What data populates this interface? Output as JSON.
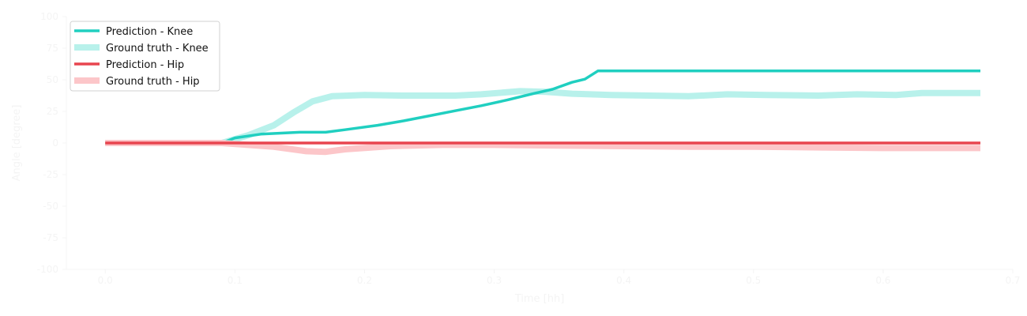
{
  "chart_data": {
    "type": "line",
    "xlabel": "Time [hh]",
    "ylabel": "Angle [degree]",
    "xlim": [
      -0.03,
      0.7
    ],
    "ylim": [
      -100,
      100
    ],
    "grid": false,
    "legend_position": "top-left",
    "x_ticks": [
      "0.0",
      "0.1",
      "0.2",
      "0.3",
      "0.4",
      "0.5",
      "0.6",
      "0.7"
    ],
    "y_ticks": [
      "100",
      "75",
      "50",
      "25",
      "0",
      "-25",
      "-50",
      "-75",
      "-100"
    ],
    "colors": {
      "knee": "#20cfc0",
      "knee_truth": "#b8f1eb",
      "hip": "#e8454f",
      "hip_truth": "#fcc6c9",
      "axis": "#f4f4f4"
    },
    "series": [
      {
        "name": "Ground truth - Knee",
        "style": "truth",
        "color_key": "knee_truth",
        "points": [
          [
            0.0,
            0
          ],
          [
            0.05,
            0
          ],
          [
            0.09,
            0
          ],
          [
            0.11,
            6
          ],
          [
            0.13,
            14
          ],
          [
            0.145,
            24
          ],
          [
            0.16,
            33
          ],
          [
            0.175,
            37
          ],
          [
            0.2,
            38
          ],
          [
            0.23,
            37.5
          ],
          [
            0.27,
            37.5
          ],
          [
            0.29,
            38.5
          ],
          [
            0.32,
            41
          ],
          [
            0.34,
            40.5
          ],
          [
            0.36,
            39
          ],
          [
            0.39,
            38
          ],
          [
            0.42,
            37.5
          ],
          [
            0.45,
            37
          ],
          [
            0.48,
            38.5
          ],
          [
            0.51,
            38
          ],
          [
            0.55,
            37.5
          ],
          [
            0.58,
            38.5
          ],
          [
            0.61,
            38
          ],
          [
            0.63,
            39.5
          ],
          [
            0.675,
            39.5
          ]
        ]
      },
      {
        "name": "Prediction - Knee",
        "style": "prediction",
        "color_key": "knee",
        "points": [
          [
            0.0,
            0
          ],
          [
            0.05,
            0
          ],
          [
            0.09,
            0
          ],
          [
            0.1,
            4
          ],
          [
            0.12,
            7
          ],
          [
            0.15,
            8.5
          ],
          [
            0.17,
            8.5
          ],
          [
            0.185,
            10.5
          ],
          [
            0.21,
            14
          ],
          [
            0.23,
            17.5
          ],
          [
            0.25,
            21.5
          ],
          [
            0.27,
            25.5
          ],
          [
            0.29,
            29.5
          ],
          [
            0.31,
            34
          ],
          [
            0.33,
            39
          ],
          [
            0.345,
            42.5
          ],
          [
            0.36,
            48
          ],
          [
            0.37,
            50.5
          ],
          [
            0.38,
            57
          ],
          [
            0.675,
            57
          ]
        ]
      },
      {
        "name": "Ground truth - Hip",
        "style": "truth",
        "color_key": "hip_truth",
        "points": [
          [
            0.0,
            0
          ],
          [
            0.09,
            0
          ],
          [
            0.13,
            -3
          ],
          [
            0.155,
            -6.5
          ],
          [
            0.17,
            -7
          ],
          [
            0.185,
            -5
          ],
          [
            0.22,
            -2.5
          ],
          [
            0.26,
            -1.5
          ],
          [
            0.3,
            -1.5
          ],
          [
            0.35,
            -2
          ],
          [
            0.4,
            -2.5
          ],
          [
            0.45,
            -3
          ],
          [
            0.5,
            -3
          ],
          [
            0.55,
            -3.5
          ],
          [
            0.6,
            -4
          ],
          [
            0.64,
            -4
          ],
          [
            0.675,
            -4
          ]
        ]
      },
      {
        "name": "Prediction - Hip",
        "style": "prediction",
        "color_key": "hip",
        "points": [
          [
            0.0,
            0
          ],
          [
            0.675,
            0
          ]
        ]
      }
    ],
    "legend": [
      {
        "label": "Prediction - Knee",
        "color_key": "knee",
        "style": "prediction"
      },
      {
        "label": "Ground truth - Knee",
        "color_key": "knee_truth",
        "style": "truth"
      },
      {
        "label": "Prediction - Hip",
        "color_key": "hip",
        "style": "prediction"
      },
      {
        "label": "Ground truth - Hip",
        "color_key": "hip_truth",
        "style": "truth"
      }
    ]
  }
}
